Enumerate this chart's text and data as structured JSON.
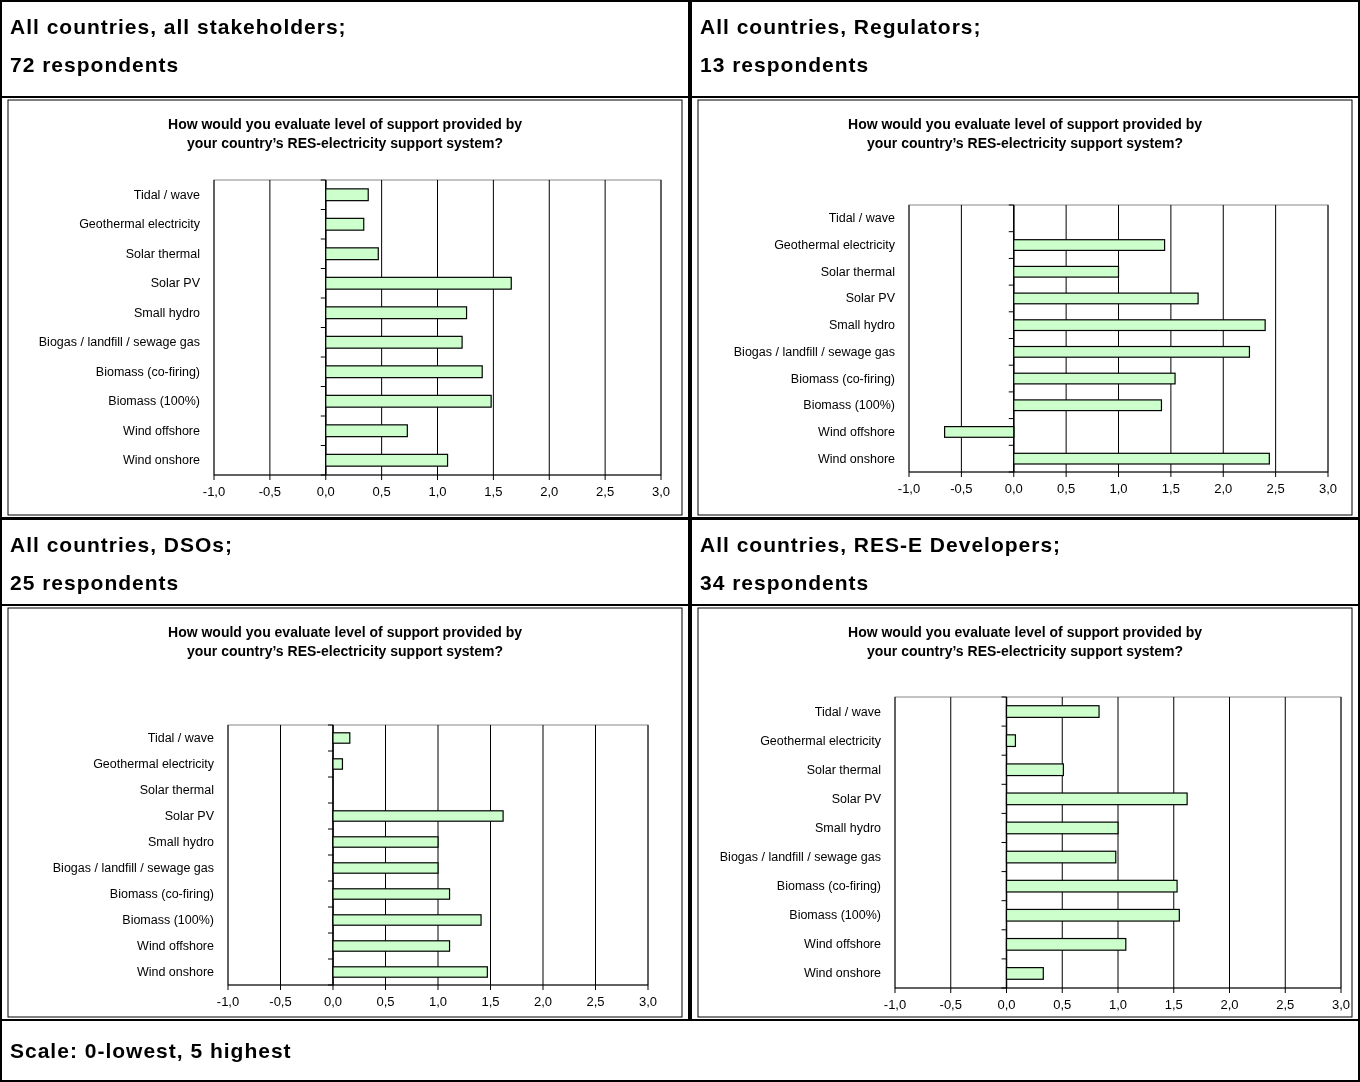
{
  "chart_data": [
    {
      "type": "bar",
      "orientation": "horizontal",
      "title": "All countries, all stakeholders; 72 respondents",
      "subtitle": "How would you evaluate level of support provided by your country’s RES-electricity support system?",
      "categories": [
        "Tidal / wave",
        "Geothermal electricity",
        "Solar thermal",
        "Solar PV",
        "Small hydro",
        "Biogas / landfill / sewage gas",
        "Biomass (co-firing)",
        "Biomass (100%)",
        "Wind offshore",
        "Wind onshore"
      ],
      "values": [
        0.38,
        0.34,
        0.47,
        1.66,
        1.26,
        1.22,
        1.4,
        1.48,
        0.73,
        1.09
      ],
      "color": "#ccffcc",
      "xlim": [
        -1,
        3
      ],
      "xticks": [
        {
          "value": -1,
          "label": "-1,0"
        },
        {
          "value": -0.5,
          "label": "-0,5"
        },
        {
          "value": 0,
          "label": "0,0"
        },
        {
          "value": 0.5,
          "label": "0,5"
        },
        {
          "value": 1,
          "label": "1,0"
        },
        {
          "value": 1.5,
          "label": "1,5"
        },
        {
          "value": 2,
          "label": "2,0"
        },
        {
          "value": 2.5,
          "label": "2,5"
        },
        {
          "value": 3,
          "label": "3,0"
        }
      ],
      "grid": "x"
    },
    {
      "type": "bar",
      "orientation": "horizontal",
      "title": "All countries, Regulators; 13 respondents",
      "subtitle": "How would you evaluate level of support provided by your country’s RES-electricity support system?",
      "categories": [
        "Tidal / wave",
        "Geothermal electricity",
        "Solar thermal",
        "Solar PV",
        "Small hydro",
        "Biogas / landfill / sewage gas",
        "Biomass (co-firing)",
        "Biomass (100%)",
        "Wind offshore",
        "Wind onshore"
      ],
      "values": [
        null,
        1.44,
        1.0,
        1.76,
        2.4,
        2.25,
        1.54,
        1.41,
        -0.66,
        2.44
      ],
      "color": "#ccffcc",
      "xlim": [
        -1,
        3
      ],
      "xticks": [
        {
          "value": -1,
          "label": "-1,0"
        },
        {
          "value": -0.5,
          "label": "-0,5"
        },
        {
          "value": 0,
          "label": "0,0"
        },
        {
          "value": 0.5,
          "label": "0,5"
        },
        {
          "value": 1,
          "label": "1,0"
        },
        {
          "value": 1.5,
          "label": "1,5"
        },
        {
          "value": 2,
          "label": "2,0"
        },
        {
          "value": 2.5,
          "label": "2,5"
        },
        {
          "value": 3,
          "label": "3,0"
        }
      ],
      "grid": "x"
    },
    {
      "type": "bar",
      "orientation": "horizontal",
      "title": "All countries, DSOs; 25 respondents",
      "subtitle": "How would you evaluate level of support provided by your country’s RES-electricity support system?",
      "categories": [
        "Tidal / wave",
        "Geothermal electricity",
        "Solar thermal",
        "Solar PV",
        "Small hydro",
        "Biogas / landfill / sewage gas",
        "Biomass (co-firing)",
        "Biomass (100%)",
        "Wind offshore",
        "Wind onshore"
      ],
      "values": [
        0.16,
        0.09,
        null,
        1.62,
        1.0,
        1.0,
        1.11,
        1.41,
        1.11,
        1.47
      ],
      "color": "#ccffcc",
      "xlim": [
        -1,
        3
      ],
      "xticks": [
        {
          "value": -1,
          "label": "-1,0"
        },
        {
          "value": -0.5,
          "label": "-0,5"
        },
        {
          "value": 0,
          "label": "0,0"
        },
        {
          "value": 0.5,
          "label": "0,5"
        },
        {
          "value": 1,
          "label": "1,0"
        },
        {
          "value": 1.5,
          "label": "1,5"
        },
        {
          "value": 2,
          "label": "2,0"
        },
        {
          "value": 2.5,
          "label": "2,5"
        },
        {
          "value": 3,
          "label": "3,0"
        }
      ],
      "grid": "x"
    },
    {
      "type": "bar",
      "orientation": "horizontal",
      "title": "All countries, RES-E Developers; 34 respondents",
      "subtitle": "How would you evaluate level of support provided by your country’s RES-electricity support system?",
      "categories": [
        "Tidal / wave",
        "Geothermal electricity",
        "Solar thermal",
        "Solar PV",
        "Small hydro",
        "Biogas / landfill / sewage gas",
        "Biomass (co-firing)",
        "Biomass (100%)",
        "Wind offshore",
        "Wind onshore"
      ],
      "values": [
        0.83,
        0.08,
        0.51,
        1.62,
        1.0,
        0.98,
        1.53,
        1.55,
        1.07,
        0.33
      ],
      "color": "#ccffcc",
      "xlim": [
        -1,
        3
      ],
      "xticks": [
        {
          "value": -1,
          "label": "-1,0"
        },
        {
          "value": -0.5,
          "label": "-0,5"
        },
        {
          "value": 0,
          "label": "0,0"
        },
        {
          "value": 0.5,
          "label": "0,5"
        },
        {
          "value": 1,
          "label": "1,0"
        },
        {
          "value": 1.5,
          "label": "1,5"
        },
        {
          "value": 2,
          "label": "2,0"
        },
        {
          "value": 2.5,
          "label": "2,5"
        },
        {
          "value": 3,
          "label": "3,0"
        }
      ],
      "grid": "x"
    },
    {
      "type": "other",
      "title": "Scale: 0-lowest, 5 highest"
    }
  ]
}
